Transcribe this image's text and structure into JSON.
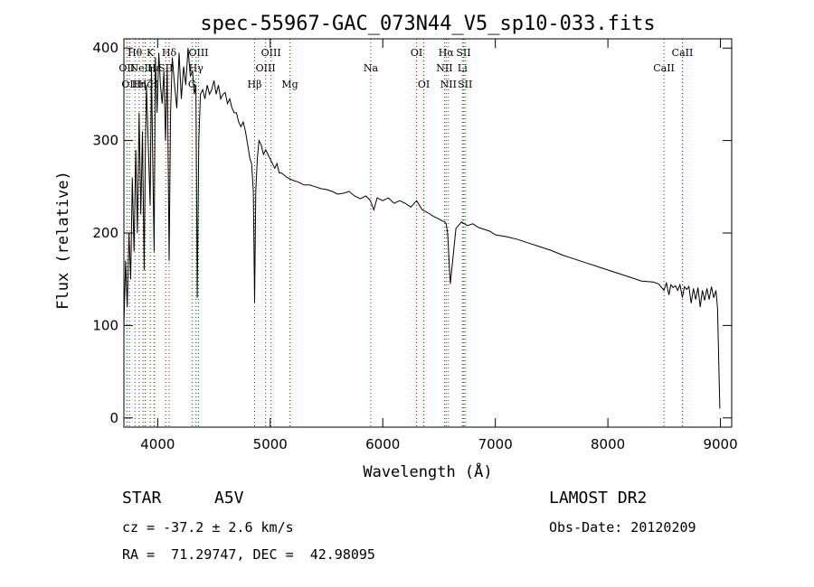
{
  "chart_data": {
    "type": "line",
    "title": "spec-55967-GAC_073N44_V5_sp10-033.fits",
    "xlabel": "Wavelength (Å)",
    "ylabel": "Flux (relative)",
    "xlim": [
      3700,
      9100
    ],
    "ylim": [
      -10,
      410
    ],
    "x_ticks": [
      4000,
      5000,
      6000,
      7000,
      8000,
      9000
    ],
    "y_ticks": [
      0,
      100,
      200,
      300,
      400
    ],
    "grid": false,
    "legend": "none",
    "series": [
      {
        "color": "#000000",
        "x": [
          3700,
          3715,
          3730,
          3745,
          3760,
          3775,
          3790,
          3805,
          3820,
          3835,
          3850,
          3865,
          3880,
          3890,
          3900,
          3915,
          3933,
          3945,
          3955,
          3968,
          3980,
          3995,
          4010,
          4025,
          4040,
          4055,
          4070,
          4085,
          4102,
          4115,
          4130,
          4150,
          4170,
          4190,
          4210,
          4230,
          4250,
          4270,
          4290,
          4310,
          4325,
          4340,
          4352,
          4365,
          4380,
          4400,
          4420,
          4440,
          4460,
          4480,
          4500,
          4520,
          4540,
          4560,
          4580,
          4600,
          4620,
          4640,
          4660,
          4680,
          4700,
          4720,
          4740,
          4760,
          4780,
          4800,
          4820,
          4835,
          4850,
          4861,
          4872,
          4885,
          4900,
          4920,
          4940,
          4960,
          4980,
          5000,
          5020,
          5040,
          5060,
          5080,
          5100,
          5150,
          5200,
          5250,
          5300,
          5350,
          5400,
          5450,
          5500,
          5550,
          5600,
          5650,
          5700,
          5750,
          5800,
          5850,
          5890,
          5920,
          5950,
          6000,
          6050,
          6100,
          6150,
          6200,
          6250,
          6300,
          6350,
          6400,
          6450,
          6500,
          6530,
          6550,
          6563,
          6576,
          6600,
          6650,
          6700,
          6750,
          6800,
          6850,
          6900,
          6950,
          7000,
          7100,
          7200,
          7300,
          7400,
          7500,
          7600,
          7700,
          7800,
          7900,
          8000,
          8100,
          8200,
          8300,
          8400,
          8450,
          8498,
          8520,
          8542,
          8560,
          8580,
          8600,
          8620,
          8640,
          8662,
          8680,
          8700,
          8720,
          8740,
          8760,
          8780,
          8800,
          8820,
          8840,
          8860,
          8880,
          8900,
          8920,
          8940,
          8960,
          8975,
          8985,
          8995
        ],
        "y": [
          100,
          170,
          120,
          200,
          150,
          260,
          180,
          290,
          200,
          330,
          220,
          310,
          160,
          280,
          360,
          300,
          230,
          380,
          290,
          180,
          390,
          330,
          395,
          360,
          340,
          375,
          300,
          380,
          170,
          330,
          390,
          360,
          335,
          395,
          345,
          380,
          360,
          400,
          370,
          375,
          350,
          360,
          130,
          300,
          350,
          355,
          345,
          360,
          350,
          355,
          365,
          350,
          360,
          345,
          350,
          352,
          340,
          345,
          335,
          330,
          330,
          320,
          315,
          320,
          310,
          295,
          280,
          275,
          245,
          125,
          245,
          280,
          300,
          295,
          285,
          290,
          285,
          280,
          275,
          270,
          275,
          265,
          265,
          260,
          257,
          255,
          252,
          252,
          250,
          248,
          247,
          245,
          242,
          243,
          245,
          240,
          237,
          240,
          235,
          225,
          238,
          235,
          238,
          232,
          235,
          232,
          228,
          235,
          225,
          222,
          218,
          215,
          213,
          212,
          210,
          200,
          145,
          205,
          212,
          208,
          210,
          206,
          204,
          202,
          198,
          196,
          193,
          189,
          185,
          181,
          176,
          172,
          168,
          164,
          160,
          156,
          152,
          148,
          147,
          145,
          138,
          146,
          133,
          144,
          141,
          143,
          138,
          144,
          130,
          142,
          139,
          142,
          124,
          140,
          128,
          141,
          120,
          138,
          127,
          140,
          128,
          142,
          130,
          138,
          118,
          60,
          10
        ]
      }
    ],
    "spectral_lines": [
      {
        "wavelength": 3726,
        "label": "OII",
        "row": 1
      },
      {
        "wavelength": 3750,
        "label": "OII",
        "row": 2
      },
      {
        "wavelength": 3798,
        "label": "Hθ",
        "row": 0
      },
      {
        "wavelength": 3835,
        "label": "Hη",
        "row": 2
      },
      {
        "wavelength": 3869,
        "label": "NeIII",
        "row": 1
      },
      {
        "wavelength": 3889,
        "label": "Hζ",
        "row": 2
      },
      {
        "wavelength": 3934,
        "label": "K",
        "row": 0
      },
      {
        "wavelength": 3968,
        "label": "H",
        "row": 2
      },
      {
        "wavelength": 3970,
        "label": "Hε",
        "row": 1
      },
      {
        "wavelength": 4072,
        "label": "SII",
        "row": 1
      },
      {
        "wavelength": 4102,
        "label": "Hδ",
        "row": 0
      },
      {
        "wavelength": 4305,
        "label": "G",
        "row": 2
      },
      {
        "wavelength": 4341,
        "label": "Hγ",
        "row": 1
      },
      {
        "wavelength": 4363,
        "label": "OIII",
        "row": 0
      },
      {
        "wavelength": 4861,
        "label": "Hβ",
        "row": 2
      },
      {
        "wavelength": 4959,
        "label": "OIII",
        "row": 1
      },
      {
        "wavelength": 5007,
        "label": "OIII",
        "row": 0
      },
      {
        "wavelength": 5175,
        "label": "Mg",
        "row": 2
      },
      {
        "wavelength": 5893,
        "label": "Na",
        "row": 1
      },
      {
        "wavelength": 6300,
        "label": "OI",
        "row": 0
      },
      {
        "wavelength": 6364,
        "label": "OI",
        "row": 2
      },
      {
        "wavelength": 6548,
        "label": "NII",
        "row": 1
      },
      {
        "wavelength": 6563,
        "label": "Hα",
        "row": 0
      },
      {
        "wavelength": 6583,
        "label": "NII",
        "row": 2
      },
      {
        "wavelength": 6708,
        "label": "Li",
        "row": 1
      },
      {
        "wavelength": 6717,
        "label": "SII",
        "row": 0
      },
      {
        "wavelength": 6731,
        "label": "SII",
        "row": 2
      },
      {
        "wavelength": 8498,
        "label": "CaII",
        "row": 1
      },
      {
        "wavelength": 8662,
        "label": "CaII",
        "row": 0
      }
    ],
    "colors": {
      "line_markers": "#cc0000",
      "spectrum": "#000000",
      "axes": "#000000"
    }
  },
  "info": {
    "class_label": "STAR",
    "subclass": "A5V",
    "survey": "LAMOST DR2",
    "redshift": "cz = -37.2 ± 2.6 km/s",
    "obs_date": "Obs-Date: 20120209",
    "coords": "RA =  71.29747, DEC =  42.98095"
  }
}
